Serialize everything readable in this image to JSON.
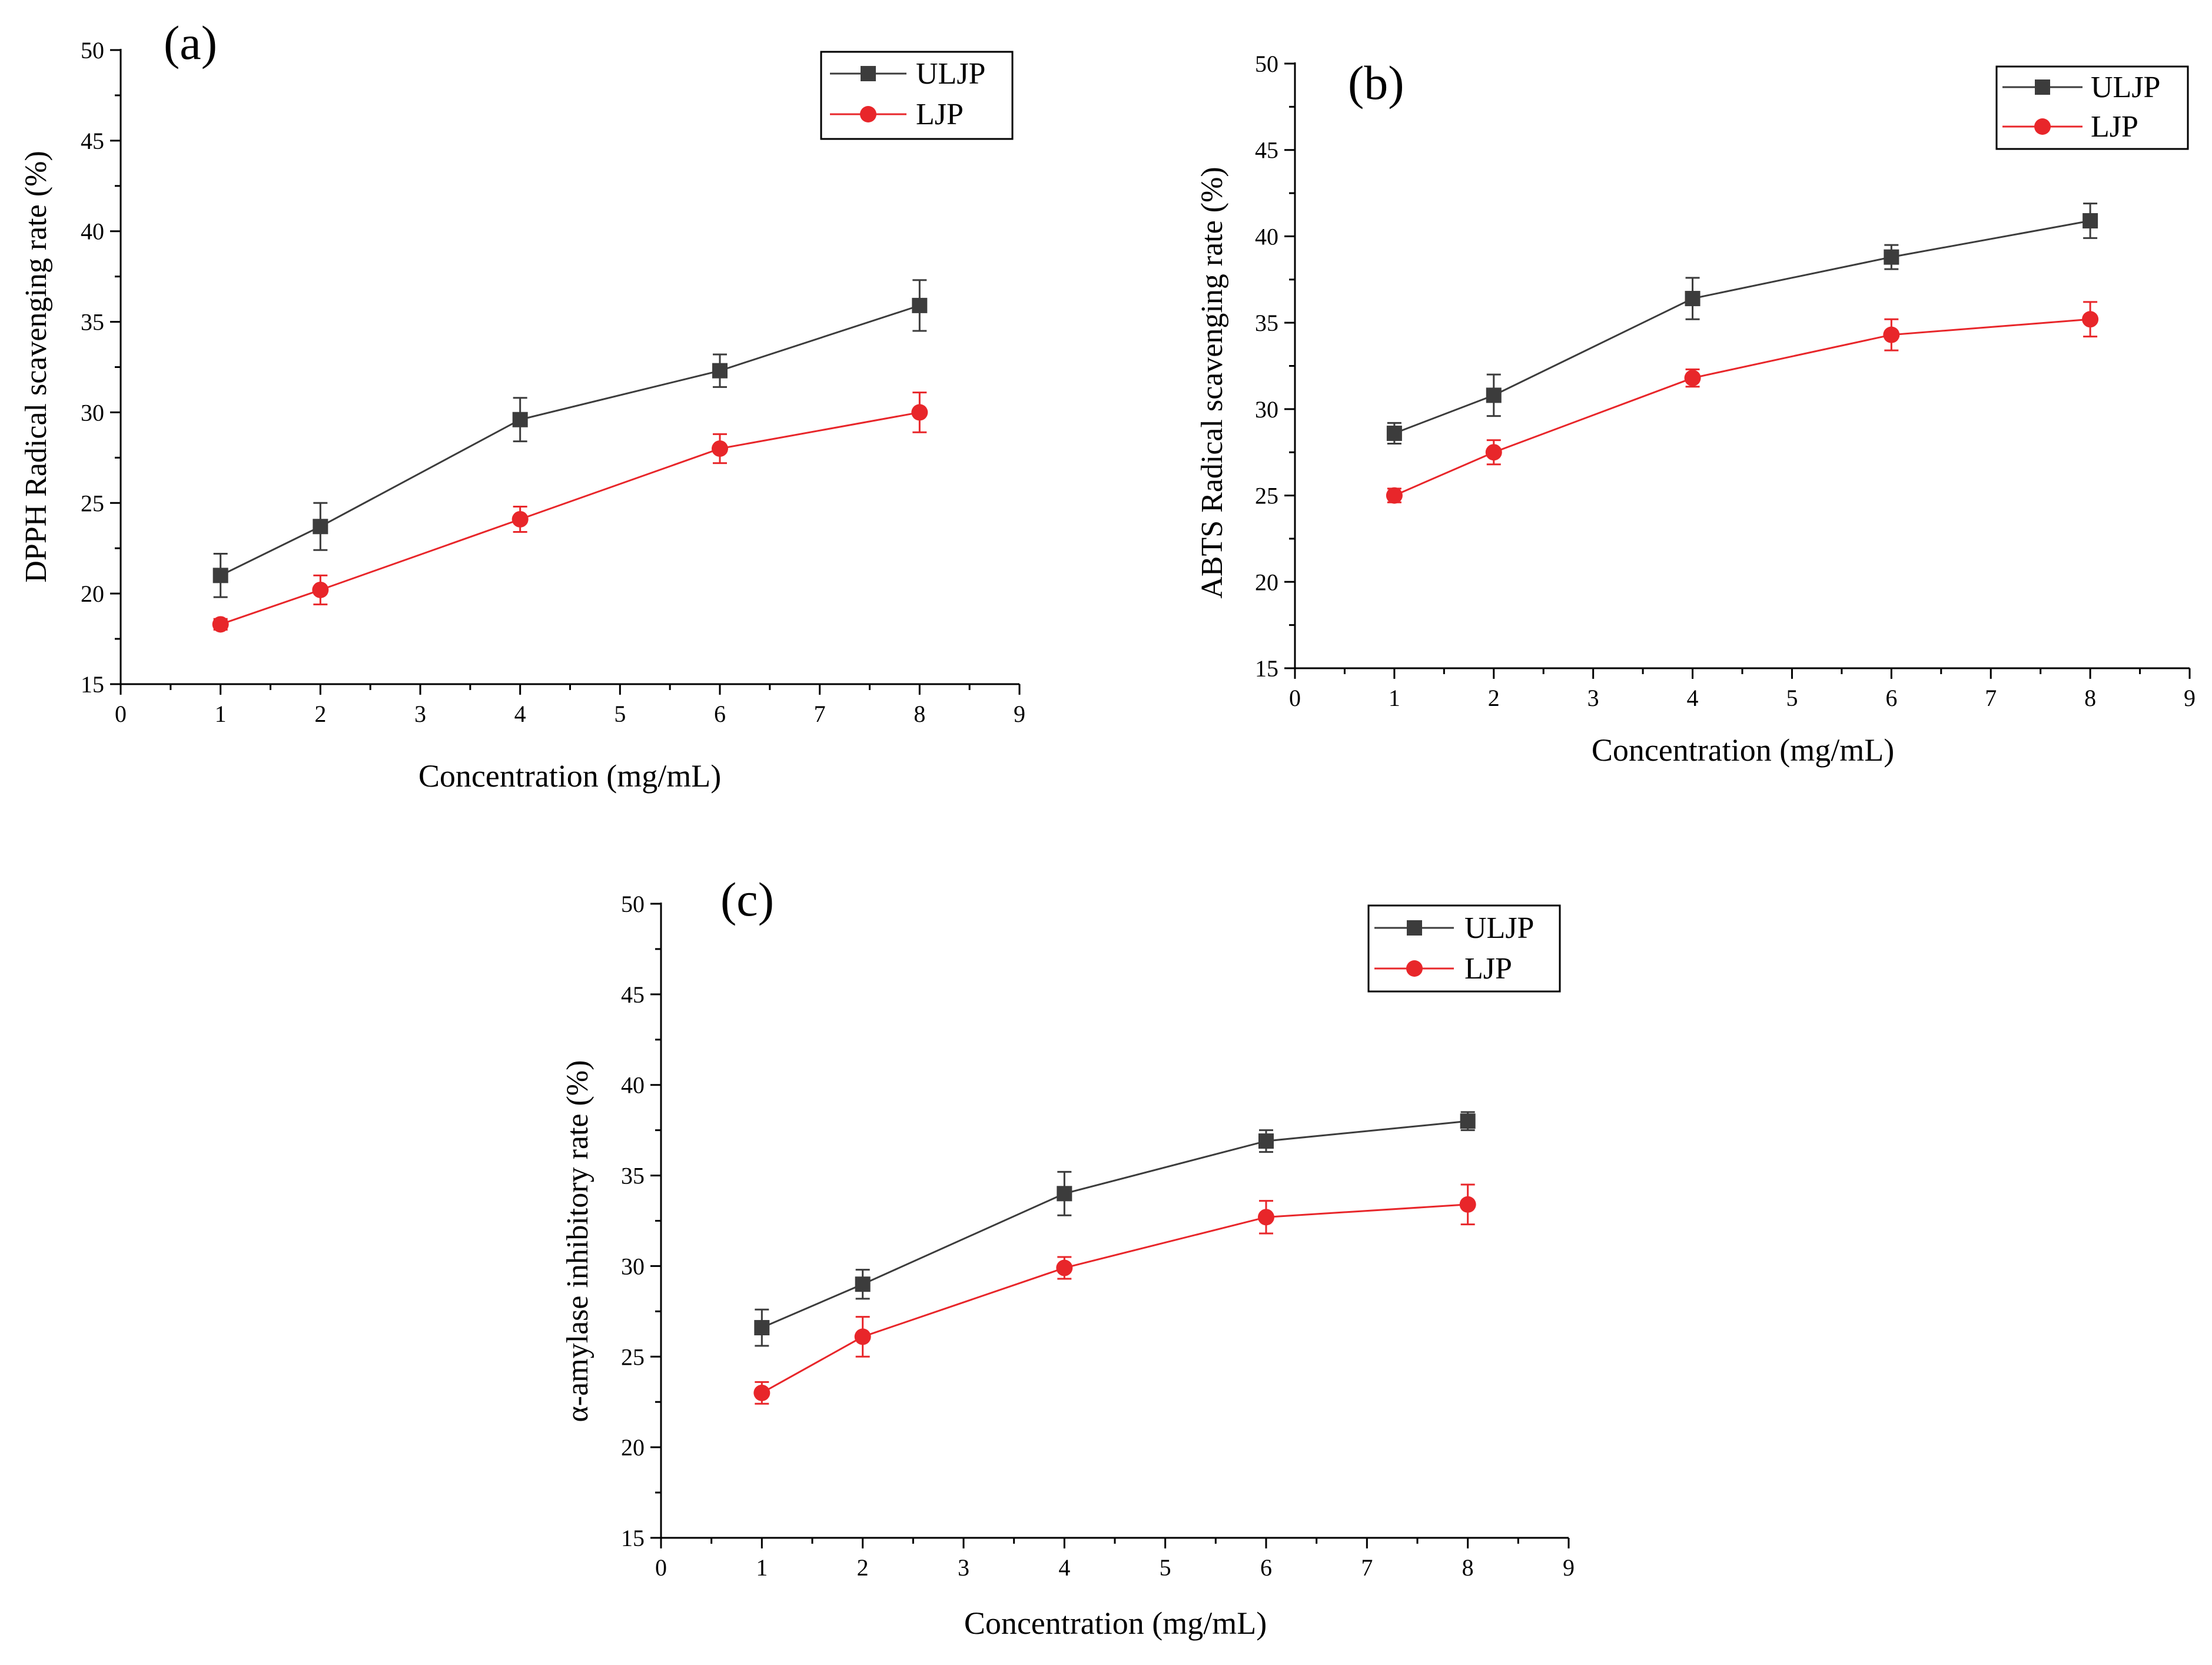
{
  "chart_data": [
    {
      "type": "line",
      "panel_label": "(a)",
      "title": "",
      "xlabel": "Concentration (mg/mL)",
      "ylabel": "DPPH Radical scavenging rate (%)",
      "xlim": [
        0,
        9
      ],
      "ylim": [
        15,
        50
      ],
      "xticks": [
        0,
        1,
        2,
        3,
        4,
        5,
        6,
        7,
        8,
        9
      ],
      "yticks": [
        15,
        20,
        25,
        30,
        35,
        40,
        45,
        50
      ],
      "grid": false,
      "legend_position": "top-right",
      "series": [
        {
          "name": "ULJP",
          "color": "#3c3c3c",
          "marker": "square",
          "x": [
            1,
            2,
            4,
            6,
            8
          ],
          "y": [
            21.0,
            23.7,
            29.6,
            32.3,
            35.9
          ],
          "err": [
            1.2,
            1.3,
            1.2,
            0.9,
            1.4
          ]
        },
        {
          "name": "LJP",
          "color": "#e8262a",
          "marker": "circle",
          "x": [
            1,
            2,
            4,
            6,
            8
          ],
          "y": [
            18.3,
            20.2,
            24.1,
            28.0,
            30.0
          ],
          "err": [
            0.3,
            0.8,
            0.7,
            0.8,
            1.1
          ]
        }
      ]
    },
    {
      "type": "line",
      "panel_label": "(b)",
      "title": "",
      "xlabel": "Concentration (mg/mL)",
      "ylabel": "ABTS Radical scavenging rate (%)",
      "xlim": [
        0,
        9
      ],
      "ylim": [
        15,
        50
      ],
      "xticks": [
        0,
        1,
        2,
        3,
        4,
        5,
        6,
        7,
        8,
        9
      ],
      "yticks": [
        15,
        20,
        25,
        30,
        35,
        40,
        45,
        50
      ],
      "grid": false,
      "legend_position": "top-right",
      "series": [
        {
          "name": "ULJP",
          "color": "#3c3c3c",
          "marker": "square",
          "x": [
            1,
            2,
            4,
            6,
            8
          ],
          "y": [
            28.6,
            30.8,
            36.4,
            38.8,
            40.9
          ],
          "err": [
            0.6,
            1.2,
            1.2,
            0.7,
            1.0
          ]
        },
        {
          "name": "LJP",
          "color": "#e8262a",
          "marker": "circle",
          "x": [
            1,
            2,
            4,
            6,
            8
          ],
          "y": [
            25.0,
            27.5,
            31.8,
            34.3,
            35.2
          ],
          "err": [
            0.4,
            0.7,
            0.5,
            0.9,
            1.0
          ]
        }
      ]
    },
    {
      "type": "line",
      "panel_label": "(c)",
      "title": "",
      "xlabel": "Concentration (mg/mL)",
      "ylabel": "α-amylase inhibitory rate (%)",
      "xlim": [
        0,
        9
      ],
      "ylim": [
        15,
        50
      ],
      "xticks": [
        0,
        1,
        2,
        3,
        4,
        5,
        6,
        7,
        8,
        9
      ],
      "yticks": [
        15,
        20,
        25,
        30,
        35,
        40,
        45,
        50
      ],
      "grid": false,
      "legend_position": "top-right",
      "series": [
        {
          "name": "ULJP",
          "color": "#3c3c3c",
          "marker": "square",
          "x": [
            1,
            2,
            4,
            6,
            8
          ],
          "y": [
            26.6,
            29.0,
            34.0,
            36.9,
            38.0
          ],
          "err": [
            1.0,
            0.8,
            1.2,
            0.6,
            0.5
          ]
        },
        {
          "name": "LJP",
          "color": "#e8262a",
          "marker": "circle",
          "x": [
            1,
            2,
            4,
            6,
            8
          ],
          "y": [
            23.0,
            26.1,
            29.9,
            32.7,
            33.4
          ],
          "err": [
            0.6,
            1.1,
            0.6,
            0.9,
            1.1
          ]
        }
      ]
    }
  ]
}
